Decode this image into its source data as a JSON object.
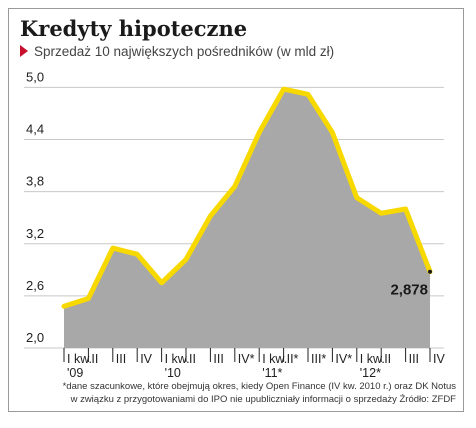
{
  "header": {
    "title": "Kredyty hipoteczne",
    "subtitle": "Sprzedaż 10 największych pośredników (w mld zł)"
  },
  "footnote": {
    "line1": "*dane szacunkowe, które obejmują okres, kiedy Open Finance (IV kw. 2010 r.) oraz DK Notus",
    "line2": "w związku z przygotowaniami do IPO nie upubliczniały informacji o sprzedaży Źródło: ZFDF"
  },
  "chart_data": {
    "type": "area",
    "title": "Kredyty hipoteczne",
    "subtitle": "Sprzedaż 10 największych pośredników (w mld zł)",
    "categories": [
      [
        "I kw.",
        "'09"
      ],
      [
        "II"
      ],
      [
        "III"
      ],
      [
        "IV"
      ],
      [
        "I kw.",
        "'10"
      ],
      [
        "II"
      ],
      [
        "III"
      ],
      [
        "IV*"
      ],
      [
        "I kw.",
        "'11*"
      ],
      [
        "II*"
      ],
      [
        "III*"
      ],
      [
        "IV*"
      ],
      [
        "I kw.",
        "'12*"
      ],
      [
        "II"
      ],
      [
        "III"
      ],
      [
        "IV"
      ]
    ],
    "values": [
      2.48,
      2.57,
      3.15,
      3.08,
      2.75,
      3.02,
      3.52,
      3.86,
      4.48,
      4.98,
      4.92,
      4.48,
      3.73,
      3.55,
      3.6,
      2.878
    ],
    "yticks": [
      2.0,
      2.6,
      3.2,
      3.8,
      4.4,
      5.0
    ],
    "ytick_labels": [
      "2,0",
      "2,6",
      "3,2",
      "3,8",
      "4,4",
      "5,0"
    ],
    "ylim": [
      2.0,
      5.2
    ],
    "last_value_label": "2,878",
    "grid": true,
    "colors": {
      "line": "#f7d900",
      "fill": "#a8a8a8",
      "grid": "#c8c8c8",
      "text": "#222222"
    }
  }
}
